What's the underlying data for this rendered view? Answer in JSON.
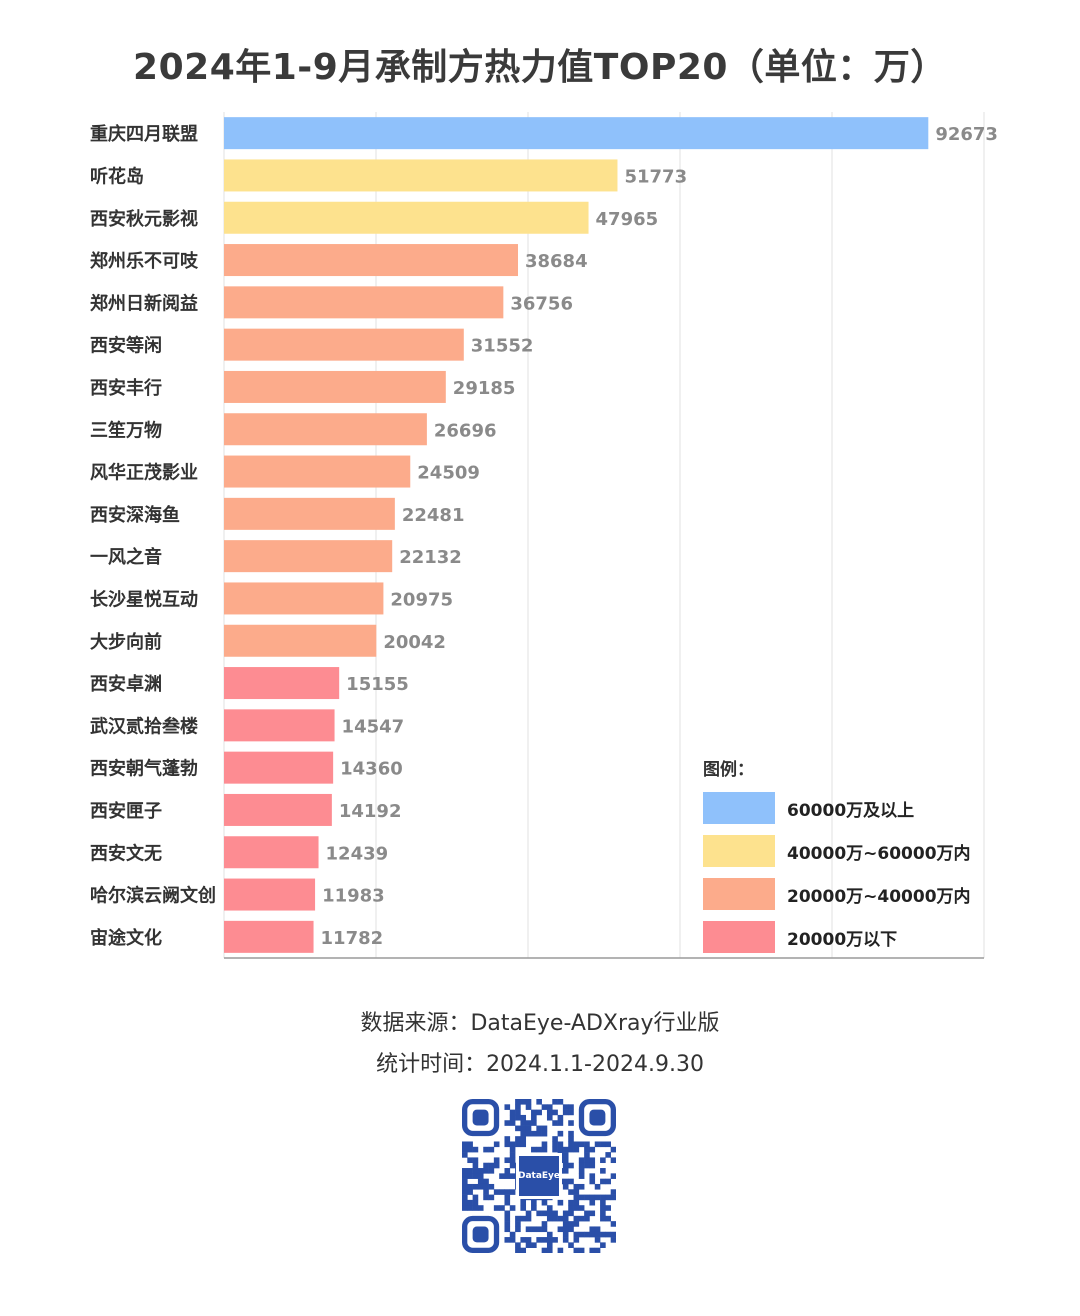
{
  "chart_data": {
    "type": "bar",
    "orientation": "horizontal",
    "title": "2024年1-9月承制方热力值TOP20（单位：万）",
    "xlim": [
      0,
      100000
    ],
    "grid": true,
    "categories": [
      "重庆四月联盟",
      "听花岛",
      "西安秋元影视",
      "郑州乐不可吱",
      "郑州日新阅益",
      "西安等闲",
      "西安丰行",
      "三笙万物",
      "风华正茂影业",
      "西安深海鱼",
      "一风之音",
      "长沙星悦互动",
      "大步向前",
      "西安卓渊",
      "武汉贰拾叁楼",
      "西安朝气蓬勃",
      "西安匣子",
      "西安文无",
      "哈尔滨云阙文创",
      "宙途文化"
    ],
    "values": [
      92673,
      51773,
      47965,
      38684,
      36756,
      31552,
      29185,
      26696,
      24509,
      22481,
      22132,
      20975,
      20042,
      15155,
      14547,
      14360,
      14192,
      12439,
      11983,
      11782
    ],
    "value_labels": [
      "92673",
      "51773",
      "47965",
      "38684",
      "36756",
      "31552",
      "29185",
      "26696",
      "24509",
      "22481",
      "22132",
      "20975",
      "20042",
      "15155",
      "14547",
      "14360",
      "14192",
      "12439",
      "11983",
      "11782"
    ],
    "legend_position": "bottom-right",
    "colors": {
      "tier1": "#8fc1fb",
      "tier2": "#fde28e",
      "tier3": "#fcab8b",
      "tier4": "#fd8c92"
    }
  },
  "legend": {
    "title": "图例：",
    "items": [
      {
        "label": "60000万及以上",
        "color": "#8fc1fb"
      },
      {
        "label": "40000万~60000万内",
        "color": "#fde28e"
      },
      {
        "label": "20000万~40000万内",
        "color": "#fcab8b"
      },
      {
        "label": "20000万以下",
        "color": "#fd8c92"
      }
    ]
  },
  "footer": {
    "source": "数据来源：DataEye-ADXray行业版",
    "period": "统计时间：2024.1.1-2024.9.30"
  },
  "qr": {
    "logo_text": "DataEye",
    "color": "#2a4fa8"
  }
}
